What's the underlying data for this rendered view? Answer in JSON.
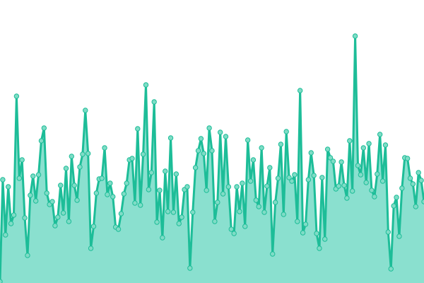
{
  "chart_data": {
    "type": "area",
    "title": "",
    "xlabel": "",
    "ylabel": "",
    "ylim": [
      0,
      400
    ],
    "grid": false,
    "legend": "none",
    "markers": true,
    "colors": {
      "line": "#1dbd98",
      "fill": "#8ae0cf",
      "marker_fill": "#7fdcc6",
      "marker_stroke": "#1dbd98"
    },
    "values": [
      2,
      146,
      68,
      136,
      84,
      96,
      264,
      148,
      174,
      92,
      39,
      124,
      151,
      116,
      153,
      201,
      219,
      127,
      111,
      115,
      81,
      93,
      138,
      99,
      162,
      87,
      179,
      138,
      117,
      164,
      182,
      244,
      183,
      49,
      80,
      127,
      147,
      148,
      191,
      125,
      141,
      122,
      79,
      76,
      98,
      126,
      141,
      174,
      176,
      113,
      218,
      110,
      182,
      280,
      132,
      156,
      256,
      86,
      131,
      64,
      158,
      101,
      205,
      100,
      154,
      84,
      93,
      132,
      136,
      21,
      100,
      163,
      187,
      204,
      183,
      131,
      219,
      187,
      87,
      114,
      213,
      126,
      207,
      136,
      76,
      70,
      136,
      101,
      141,
      80,
      202,
      144,
      174,
      117,
      108,
      191,
      100,
      137,
      163,
      41,
      114,
      148,
      196,
      97,
      214,
      149,
      144,
      153,
      87,
      272,
      71,
      83,
      146,
      184,
      152,
      70,
      49,
      149,
      62,
      189,
      177,
      172,
      133,
      137,
      171,
      138,
      120,
      201,
      130,
      349,
      166,
      153,
      191,
      142,
      197,
      131,
      122,
      154,
      210,
      144,
      195,
      72,
      20,
      109,
      121,
      66,
      134,
      177,
      176,
      148,
      140,
      108,
      156,
      145,
      115
    ]
  }
}
